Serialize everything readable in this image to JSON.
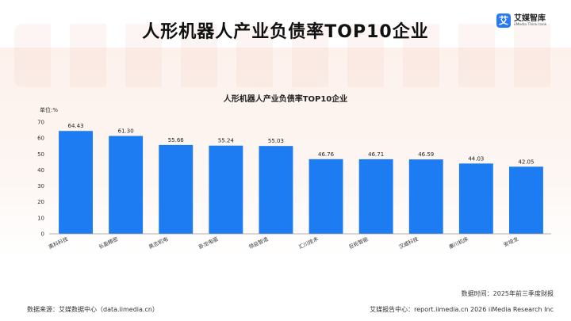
{
  "page": {
    "title": "人形机器人产业负债率TOP10企业",
    "logo_name": "艾媒智库",
    "logo_sub": "iiMedia Think tank",
    "logo_mark": "艾"
  },
  "footer": {
    "source": "数据来源：艾媒数据中心（data.iimedia.cn）",
    "data_time": "数据时间：2025年前三季度财报",
    "report": "艾媒报告中心：report.iimedia.cn    2026 iiMedia Research Inc"
  },
  "colors": {
    "bar": "#1e7cf2",
    "axis": "#999999",
    "text": "#333333"
  },
  "chart_data": {
    "type": "bar",
    "title": "人形机器人产业负债率TOP10企业",
    "ylabel": "单位:%",
    "xlabel": "",
    "ylim": [
      0,
      70
    ],
    "yticks": [
      0,
      10,
      20,
      30,
      40,
      50,
      60,
      70
    ],
    "categories": [
      "奥科科技",
      "长盈精密",
      "昊志机电",
      "卧龙电驱",
      "领益智造",
      "汇川技术",
      "巨轮智能",
      "汉威科技",
      "秦川机床",
      "安培龙"
    ],
    "values": [
      64.43,
      61.3,
      55.66,
      55.24,
      55.03,
      46.76,
      46.71,
      46.59,
      44.03,
      42.05
    ],
    "value_labels": [
      "64.43",
      "61.30",
      "55.66",
      "55.24",
      "55.03",
      "46.76",
      "46.71",
      "46.59",
      "44.03",
      "42.05"
    ],
    "grid": false,
    "legend": "none"
  }
}
